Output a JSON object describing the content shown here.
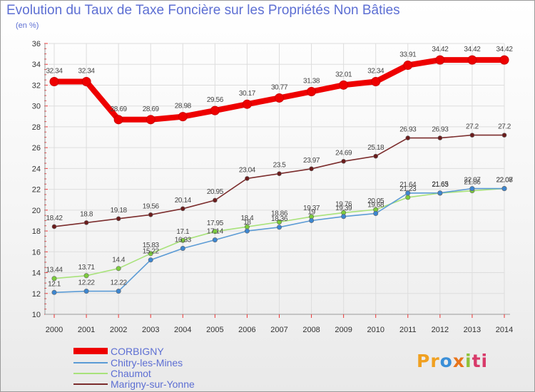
{
  "chart_data": {
    "type": "line",
    "title": "Evolution du Taux de Taxe Foncière sur les Propriétés Non Bâties",
    "subtitle": "(en %)",
    "xlabel": "",
    "ylabel": "",
    "ylim": [
      10,
      36
    ],
    "yticks": [
      10,
      12,
      14,
      16,
      18,
      20,
      22,
      24,
      26,
      28,
      30,
      32,
      34,
      36
    ],
    "categories": [
      "2000",
      "2001",
      "2002",
      "2003",
      "2004",
      "2005",
      "2006",
      "2007",
      "2008",
      "2009",
      "2010",
      "2011",
      "2012",
      "2013",
      "2014"
    ],
    "series": [
      {
        "name": "CORBIGNY",
        "color": "#ee0000",
        "marker": "#ee0000",
        "values": [
          32.34,
          32.34,
          28.69,
          28.69,
          28.98,
          29.56,
          30.17,
          30.77,
          31.38,
          32.01,
          32.34,
          33.91,
          34.42,
          34.42,
          34.42
        ],
        "labels": [
          "32.34",
          "32.34",
          "28.69",
          "28.69",
          "28.98",
          "29.56",
          "30.17",
          "30.77",
          "31.38",
          "32.01",
          "32.34",
          "33.91",
          "34.42",
          "34.42",
          "34.42"
        ]
      },
      {
        "name": "Chitry-les-Mines",
        "color": "#5b9bd5",
        "marker": "#3d86d0",
        "values": [
          12.1,
          12.22,
          12.22,
          15.22,
          16.33,
          17.14,
          18,
          18.36,
          19,
          19.39,
          19.68,
          21.64,
          21.65,
          22.07,
          22.07
        ],
        "labels": [
          "12.1",
          "12.22",
          "12.22",
          "15.22",
          "16.33",
          "17.14",
          "18",
          "18.36",
          "19",
          "19.39",
          "19.68",
          "21.64",
          "21.65",
          "22.07",
          "22.07"
        ]
      },
      {
        "name": "Chaumot",
        "color": "#a8e27a",
        "marker": "#7ccc3c",
        "values": [
          13.44,
          13.71,
          14.4,
          15.83,
          17.1,
          17.95,
          18.4,
          18.86,
          19.37,
          19.76,
          20.05,
          21.23,
          21.63,
          21.86,
          22.08
        ],
        "labels": [
          "13.44",
          "13.71",
          "14.4",
          "15.83",
          "17.1",
          "17.95",
          "18.4",
          "18.86",
          "19.37",
          "19.76",
          "20.05",
          "21.23",
          "21.63",
          "21.86",
          "22.08"
        ]
      },
      {
        "name": "Marigny-sur-Yonne",
        "color": "#7b2c2c",
        "marker": "#6b1c1c",
        "values": [
          18.42,
          18.8,
          19.18,
          19.56,
          20.14,
          20.95,
          23.04,
          23.5,
          23.97,
          24.69,
          25.18,
          26.93,
          26.93,
          27.2,
          27.2
        ],
        "labels": [
          "18.42",
          "18.8",
          "19.18",
          "19.56",
          "20.14",
          "20.95",
          "23.04",
          "23.5",
          "23.97",
          "24.69",
          "25.18",
          "26.93",
          "26.93",
          "27.2",
          "27.2"
        ]
      }
    ],
    "legend_position": "bottom-left"
  },
  "logo": {
    "part1": "Pr",
    "part2": "o",
    "part3": "x",
    "part4": "i",
    "part5": "ti"
  }
}
